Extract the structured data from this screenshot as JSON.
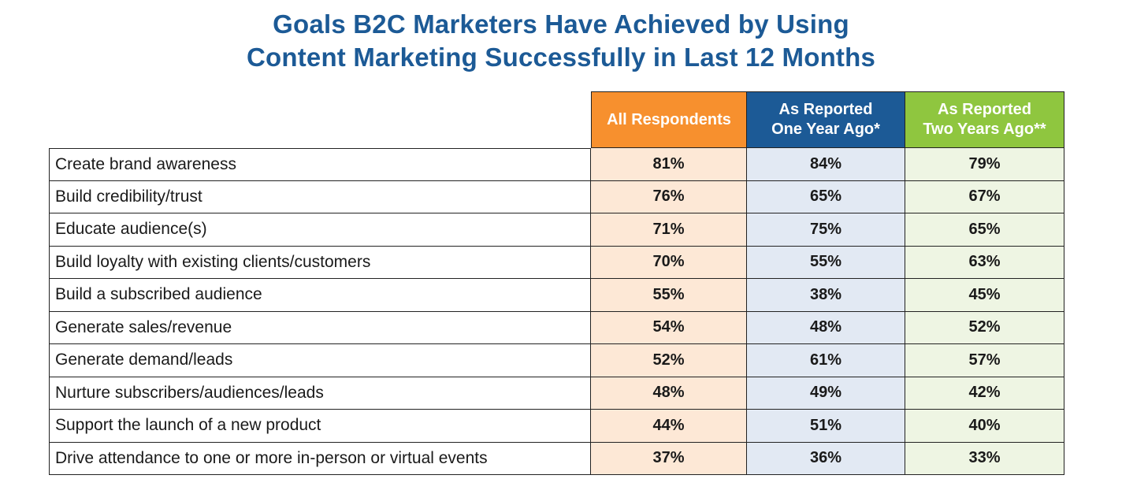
{
  "chart_data": {
    "type": "table",
    "title_lines": [
      "Goals B2C Marketers Have Achieved by Using",
      "Content Marketing Successfully in Last 12 Months"
    ],
    "columns": [
      {
        "label_lines": [
          "All Respondents"
        ],
        "header_color": "#f7902e",
        "cell_color": "#fde8d6"
      },
      {
        "label_lines": [
          "As Reported",
          "One Year Ago*"
        ],
        "header_color": "#1c5a96",
        "cell_color": "#e2e9f3"
      },
      {
        "label_lines": [
          "As Reported",
          "Two Years Ago**"
        ],
        "header_color": "#8fc63f",
        "cell_color": "#eef5e3"
      }
    ],
    "rows": [
      {
        "label": "Create brand awareness",
        "values": [
          "81%",
          "84%",
          "79%"
        ]
      },
      {
        "label": "Build credibility/trust",
        "values": [
          "76%",
          "65%",
          "67%"
        ]
      },
      {
        "label": "Educate audience(s)",
        "values": [
          "71%",
          "75%",
          "65%"
        ]
      },
      {
        "label": "Build loyalty with existing clients/customers",
        "values": [
          "70%",
          "55%",
          "63%"
        ]
      },
      {
        "label": "Build a subscribed audience",
        "values": [
          "55%",
          "38%",
          "45%"
        ]
      },
      {
        "label": "Generate sales/revenue",
        "values": [
          "54%",
          "48%",
          "52%"
        ]
      },
      {
        "label": "Generate demand/leads",
        "values": [
          "52%",
          "61%",
          "57%"
        ]
      },
      {
        "label": "Nurture subscribers/audiences/leads",
        "values": [
          "48%",
          "49%",
          "42%"
        ]
      },
      {
        "label": "Support the launch of a new product",
        "values": [
          "44%",
          "51%",
          "40%"
        ]
      },
      {
        "label": "Drive attendance to one or more in-person or virtual events",
        "values": [
          "37%",
          "36%",
          "33%"
        ]
      }
    ]
  }
}
